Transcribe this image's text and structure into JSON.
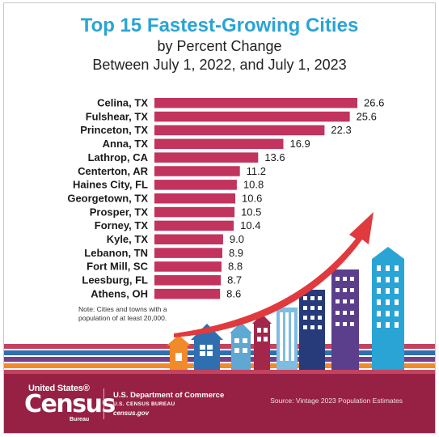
{
  "header": {
    "title": "Top 15 Fastest-Growing Cities",
    "subtitle_line1": "by Percent Change",
    "subtitle_line2": "Between July 1, 2022, and July 1, 2023"
  },
  "chart_data": {
    "type": "bar",
    "orientation": "horizontal",
    "title": "Top 15 Fastest-Growing Cities",
    "subtitle": "by Percent Change Between July 1, 2022, and July 1, 2023",
    "categories": [
      "Celina, TX",
      "Fulshear, TX",
      "Princeton, TX",
      "Anna, TX",
      "Lathrop, CA",
      "Centerton, AR",
      "Haines City, FL",
      "Georgetown, TX",
      "Prosper, TX",
      "Forney, TX",
      "Kyle, TX",
      "Lebanon, TN",
      "Fort Mill, SC",
      "Leesburg, FL",
      "Athens, OH"
    ],
    "values": [
      26.6,
      25.6,
      22.3,
      16.9,
      13.6,
      11.2,
      10.8,
      10.6,
      10.5,
      10.4,
      9.0,
      8.9,
      8.8,
      8.7,
      8.6
    ],
    "value_labels": [
      "26.6",
      "25.6",
      "22.3",
      "16.9",
      "13.6",
      "11.2",
      "10.8",
      "10.6",
      "10.5",
      "10.4",
      "9.0",
      "8.9",
      "8.8",
      "8.7",
      "8.6"
    ],
    "bar_color": "#c2335e",
    "grid": false,
    "legend": "none"
  },
  "note": "Note: Cities and towns with a population of at least 20,000.",
  "footer": {
    "logo_top": "United States®",
    "logo_main": "Census",
    "logo_bottom": "Bureau",
    "dept_line1": "U.S. Department of Commerce",
    "dept_line2": "U.S. CENSUS BUREAU",
    "dept_line3": "census.gov",
    "source": "Source: Vintage 2023 Population Estimates"
  },
  "colors": {
    "title": "#2aa4d5",
    "footer_bg": "#962145",
    "arrow": "#e03a3e"
  }
}
